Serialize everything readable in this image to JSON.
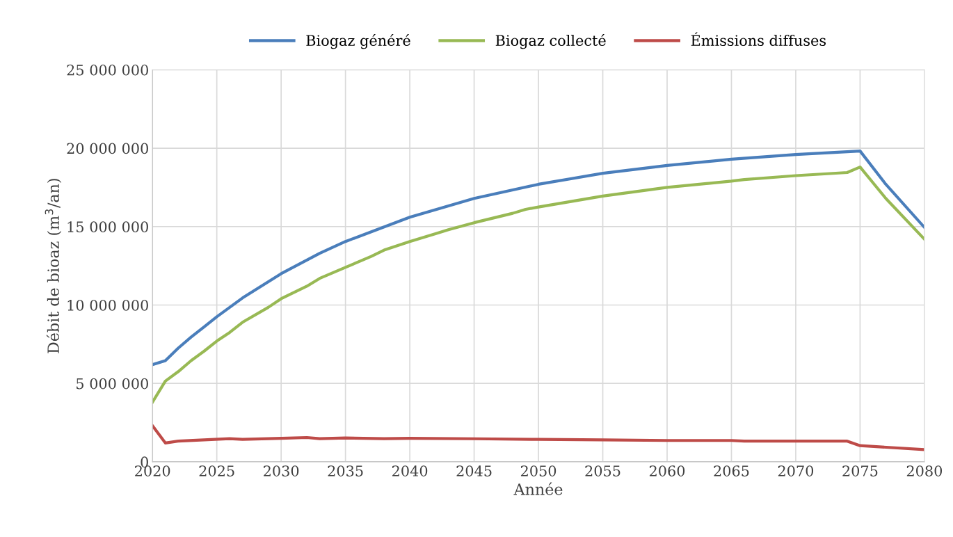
{
  "chart_data": {
    "type": "line",
    "xlabel": "Année",
    "ylabel": "Débit de bioaz (m$^{3}$/an)",
    "xlim": [
      2020,
      2080
    ],
    "xticks": [
      2020,
      2025,
      2030,
      2035,
      2040,
      2045,
      2050,
      2055,
      2060,
      2065,
      2070,
      2075,
      2080
    ],
    "ylim": [
      0,
      25000000
    ],
    "yticks": [
      {
        "value": 0,
        "label": "0"
      },
      {
        "value": 5000000,
        "label": "5 000 000"
      },
      {
        "value": 10000000,
        "label": "10 000 000"
      },
      {
        "value": 15000000,
        "label": "15 000 000"
      },
      {
        "value": 20000000,
        "label": "20 000 000"
      },
      {
        "value": 25000000,
        "label": "25 000 000"
      }
    ],
    "grid": true,
    "legend": "top",
    "marker": "none",
    "line_style": "solid",
    "series": [
      {
        "name": "Biogaz généré",
        "color": "#4a7ebb",
        "x": [
          2020,
          2021,
          2022,
          2023,
          2024,
          2025,
          2027,
          2030,
          2033,
          2035,
          2040,
          2045,
          2050,
          2055,
          2060,
          2065,
          2070,
          2075,
          2077,
          2080
        ],
        "values": [
          6200000,
          6450000,
          7250000,
          7950000,
          8600000,
          9250000,
          10450000,
          12000000,
          13300000,
          14050000,
          15600000,
          16800000,
          17700000,
          18400000,
          18900000,
          19300000,
          19600000,
          19820000,
          17700000,
          14950000
        ]
      },
      {
        "name": "Biogaz collecté",
        "color": "#98b954",
        "x": [
          2020,
          2021,
          2022,
          2023,
          2024,
          2025,
          2026,
          2027,
          2029,
          2030,
          2032,
          2033,
          2035,
          2037,
          2038,
          2040,
          2042,
          2043,
          2045,
          2048,
          2049,
          2050,
          2055,
          2060,
          2065,
          2066,
          2070,
          2074,
          2075,
          2077,
          2080
        ],
        "values": [
          3800000,
          5150000,
          5750000,
          6450000,
          7050000,
          7700000,
          8250000,
          8900000,
          9850000,
          10400000,
          11200000,
          11700000,
          12400000,
          13100000,
          13500000,
          14050000,
          14550000,
          14800000,
          15250000,
          15850000,
          16100000,
          16250000,
          16950000,
          17500000,
          17900000,
          18000000,
          18250000,
          18450000,
          18800000,
          16800000,
          14200000
        ]
      },
      {
        "name": "Émissions diffuses",
        "color": "#be4b48",
        "x": [
          2020,
          2021,
          2022,
          2024,
          2026,
          2027,
          2030,
          2032,
          2033,
          2035,
          2038,
          2040,
          2045,
          2050,
          2055,
          2060,
          2065,
          2066,
          2074,
          2075,
          2080
        ],
        "values": [
          2300000,
          1200000,
          1320000,
          1400000,
          1480000,
          1430000,
          1500000,
          1550000,
          1480000,
          1520000,
          1480000,
          1500000,
          1470000,
          1430000,
          1400000,
          1360000,
          1360000,
          1320000,
          1320000,
          1030000,
          780000
        ]
      }
    ]
  }
}
